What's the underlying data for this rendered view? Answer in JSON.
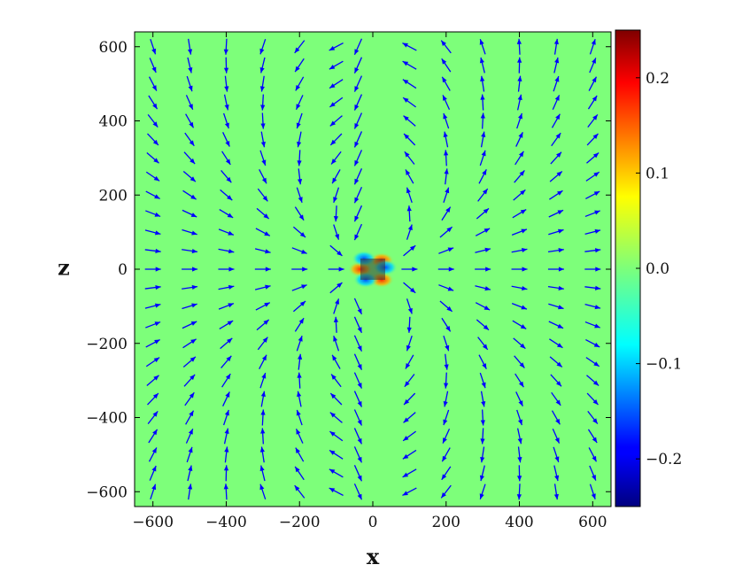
{
  "chart_data": {
    "type": "heatmap",
    "title": "",
    "xlabel": "x",
    "ylabel": "z",
    "xlim": [
      -650,
      650
    ],
    "ylim": [
      -640,
      640
    ],
    "x_ticks": [
      -600,
      -400,
      -200,
      0,
      200,
      400,
      600
    ],
    "y_ticks": [
      -600,
      -400,
      -200,
      0,
      200,
      400,
      600
    ],
    "x_tick_labels": [
      "−600",
      "−400",
      "−200",
      "0",
      "200",
      "400",
      "600"
    ],
    "y_tick_labels": [
      "−600",
      "−400",
      "−200",
      "0",
      "200",
      "400",
      "600"
    ],
    "colorbar": {
      "colormap": "jet",
      "range": [
        -0.25,
        0.25
      ],
      "ticks": [
        0.2,
        0.1,
        0.0,
        -0.1,
        -0.2
      ],
      "tick_labels": [
        "0.2",
        "0.1",
        "0.0",
        "−0.1",
        "−0.2"
      ]
    },
    "background_value": 0.0,
    "source_center": {
      "x": 0,
      "z": 0
    },
    "field_overlay": {
      "kind": "vector arrows",
      "pattern": "dipole",
      "color": "#0000ff"
    }
  }
}
